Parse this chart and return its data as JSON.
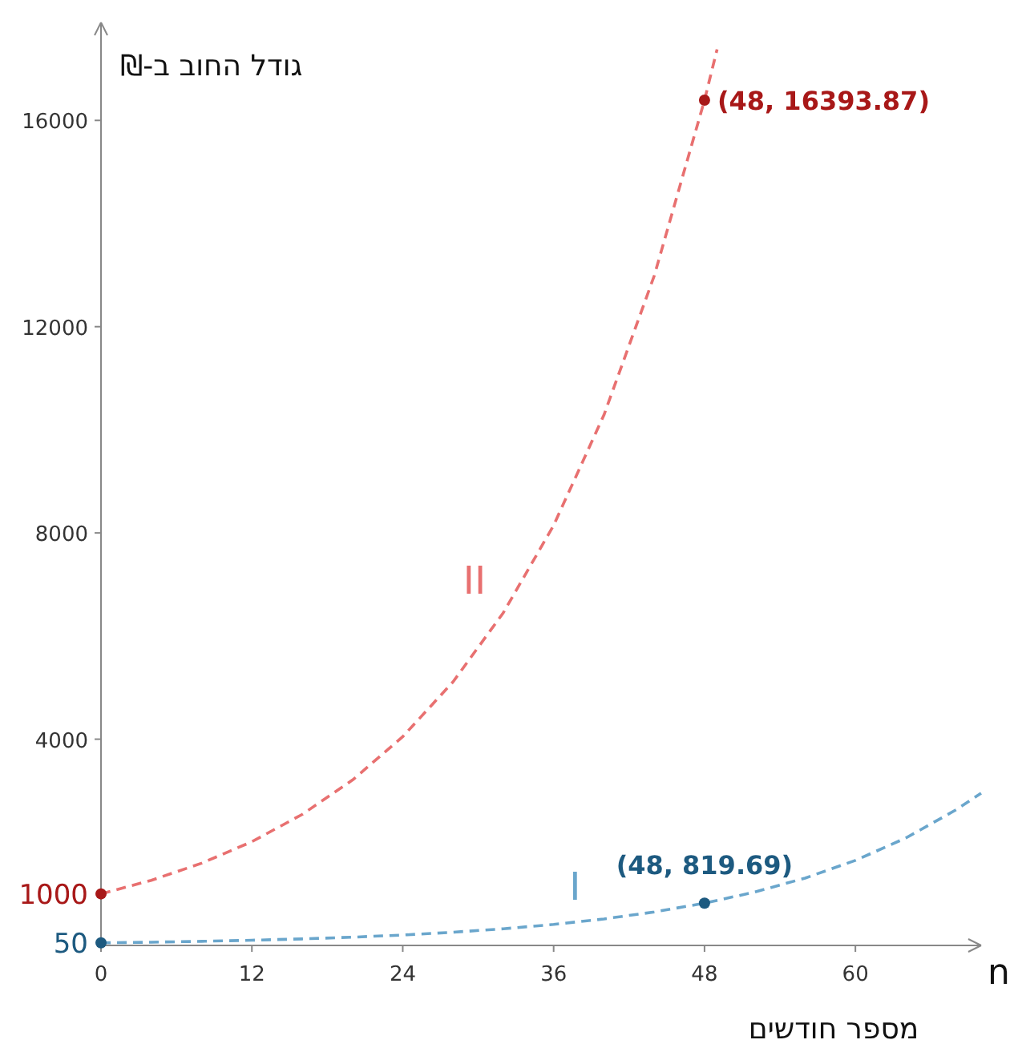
{
  "chart_data": {
    "type": "line",
    "xlabel": "מספר חודשים",
    "ylabel": "גודל החוב ב-₪",
    "grid": false,
    "line_style": "dashed",
    "marker": "none",
    "xlim": [
      0,
      70
    ],
    "ylim": [
      0,
      17900
    ],
    "xticks": [
      0,
      12,
      24,
      36,
      48,
      60
    ],
    "yticks": [
      4000,
      8000,
      12000,
      16000
    ],
    "series": [
      {
        "name": "I",
        "color": "#6aa6cc",
        "x": [
          0,
          4,
          8,
          12,
          16,
          20,
          24,
          28,
          32,
          36,
          40,
          44,
          48,
          52,
          56,
          60,
          64,
          68,
          70
        ],
        "values": [
          50,
          63,
          80,
          101,
          127,
          160,
          202,
          256,
          323,
          407,
          514,
          649,
          820,
          1035,
          1306,
          1649,
          2082,
          2629,
          2954
        ]
      },
      {
        "name": "II",
        "color": "#e87070",
        "x": [
          0,
          4,
          8,
          12,
          16,
          20,
          24,
          28,
          32,
          36,
          40,
          44,
          48,
          49
        ],
        "values": [
          1000,
          1263,
          1594,
          2012,
          2540,
          3207,
          4049,
          5112,
          6453,
          8147,
          10286,
          12986,
          16394,
          17378
        ]
      },
      {
        "type": "scatter",
        "marker": "circle",
        "color": "#1d5a80",
        "x": [
          0,
          48
        ],
        "values": [
          50,
          819.69
        ],
        "value_labels": [
          "50",
          "(48, 819.69)"
        ]
      },
      {
        "type": "scatter",
        "marker": "circle",
        "color": "#a81818",
        "x": [
          0,
          48
        ],
        "values": [
          1000,
          16393.87
        ],
        "value_labels": [
          "1000",
          "(48, 16393.87)"
        ]
      }
    ],
    "annotations": [
      "n"
    ]
  }
}
